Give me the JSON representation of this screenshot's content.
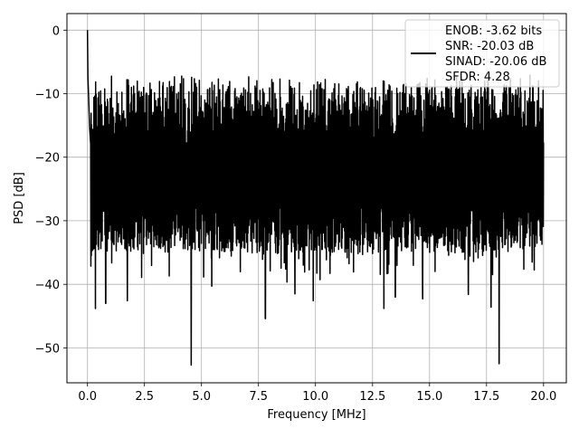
{
  "chart_data": {
    "type": "line",
    "title": "",
    "xlabel": "Frequency [MHz]",
    "ylabel": "PSD [dB]",
    "xlim": [
      -0.9,
      21.0
    ],
    "ylim": [
      -55.5,
      2.6
    ],
    "xticks": [
      0.0,
      2.5,
      5.0,
      7.5,
      10.0,
      12.5,
      15.0,
      17.5,
      20.0
    ],
    "xtick_labels": [
      "0.0",
      "2.5",
      "5.0",
      "7.5",
      "10.0",
      "12.5",
      "15.0",
      "17.5",
      "20.0"
    ],
    "yticks": [
      0,
      -10,
      -20,
      -30,
      -40,
      -50
    ],
    "ytick_labels": [
      "0",
      "−10",
      "−20",
      "−30",
      "−40",
      "−50"
    ],
    "grid": true,
    "legend_position": "top-right",
    "legend_lines": [
      "ENOB: -3.62 bits",
      "SNR: -20.03 dB",
      "SINAD: -20.06 dB",
      "SFDR: 4.28"
    ],
    "series": [
      {
        "color": "#000000",
        "noise_floor_db": -20,
        "noise_band_db": [
          -35,
          -9
        ],
        "dc_peak": [
          [
            0.0,
            0.0
          ],
          [
            0.02,
            -7.5
          ],
          [
            0.05,
            -10.5
          ],
          [
            0.09,
            -15
          ],
          [
            0.14,
            -18
          ]
        ],
        "notable_dips": [
          [
            0.35,
            -43.8
          ],
          [
            0.8,
            -43.0
          ],
          [
            1.75,
            -42.6
          ],
          [
            4.55,
            -52.7
          ],
          [
            5.45,
            -40.3
          ],
          [
            7.8,
            -45.4
          ],
          [
            9.1,
            -41.5
          ],
          [
            9.9,
            -42.6
          ],
          [
            13.0,
            -43.8
          ],
          [
            13.5,
            -42.0
          ],
          [
            14.7,
            -42.3
          ],
          [
            16.7,
            -41.6
          ],
          [
            17.7,
            -43.6
          ],
          [
            18.05,
            -52.5
          ],
          [
            19.5,
            -36.5
          ]
        ]
      }
    ]
  }
}
